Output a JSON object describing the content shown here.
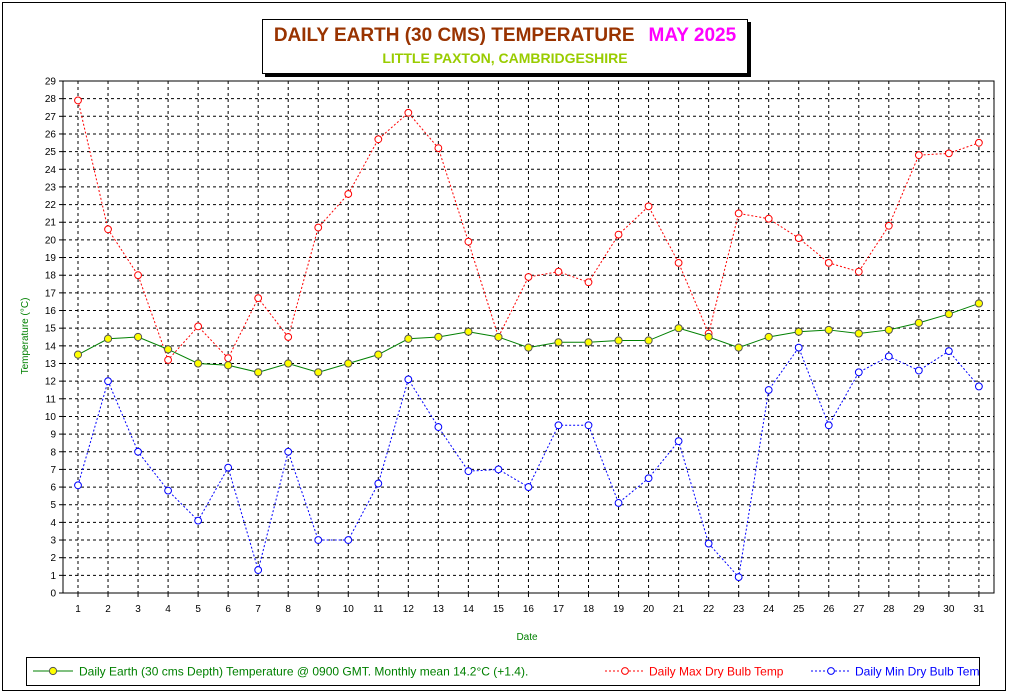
{
  "header": {
    "title": "DAILY EARTH (30 CMS) TEMPERATURE",
    "month": "MAY 2025",
    "subtitle": "LITTLE PAXTON, CAMBRIDGESHIRE"
  },
  "colors": {
    "earth_line": "#008000",
    "earth_marker": "#ffff00",
    "max_line": "#ff0000",
    "min_line": "#0000ff",
    "grid": "#000000",
    "axis_label": "#008000"
  },
  "chart_data": {
    "type": "line",
    "xlabel": "Date",
    "ylabel": "Temperature (°C)",
    "ylim": [
      0,
      29
    ],
    "xlim": [
      1,
      31
    ],
    "grid": true,
    "legend_position": "bottom",
    "x": [
      1,
      2,
      3,
      4,
      5,
      6,
      7,
      8,
      9,
      10,
      11,
      12,
      13,
      14,
      15,
      16,
      17,
      18,
      19,
      20,
      21,
      22,
      23,
      24,
      25,
      26,
      27,
      28,
      29,
      30,
      31
    ],
    "series": [
      {
        "name": "Daily Earth (30 cms Depth) Temperature @ 0900 GMT. Monthly mean 14.2°C (+1.4).",
        "style": "solid",
        "values": [
          13.5,
          14.4,
          14.5,
          13.8,
          13.0,
          12.9,
          12.5,
          13.0,
          12.5,
          13.0,
          13.5,
          14.4,
          14.5,
          14.8,
          14.5,
          13.9,
          14.2,
          14.2,
          14.3,
          14.3,
          15.0,
          14.5,
          13.9,
          14.5,
          14.8,
          14.9,
          14.7,
          14.9,
          15.3,
          15.8,
          16.4
        ]
      },
      {
        "name": "Daily Max Dry Bulb Temp",
        "style": "dotted",
        "values": [
          27.9,
          20.6,
          18.0,
          13.2,
          15.1,
          13.3,
          16.7,
          14.5,
          20.7,
          22.6,
          25.7,
          27.2,
          25.2,
          19.9,
          14.5,
          17.9,
          18.2,
          17.6,
          20.3,
          21.9,
          18.7,
          14.7,
          21.5,
          21.2,
          20.1,
          18.7,
          18.2,
          20.8,
          24.8,
          24.9,
          25.5
        ]
      },
      {
        "name": "Daily Min Dry Bulb Temp",
        "style": "dotted",
        "values": [
          6.1,
          12.0,
          8.0,
          5.8,
          4.1,
          7.1,
          1.3,
          8.0,
          3.0,
          3.0,
          6.2,
          12.1,
          9.4,
          6.9,
          7.0,
          6.0,
          9.5,
          9.5,
          5.1,
          6.5,
          8.6,
          2.8,
          0.9,
          11.5,
          13.9,
          9.5,
          12.5,
          13.4,
          12.6,
          13.7,
          11.7
        ]
      }
    ]
  }
}
